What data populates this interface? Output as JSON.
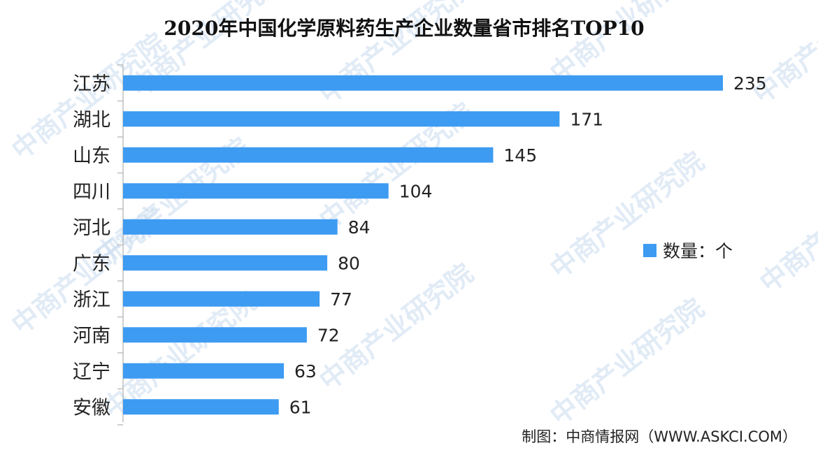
{
  "watermark_text": "中商产业研究院",
  "source_text": "制图：中商情报网（WWW.ASKCI.COM）",
  "legend": {
    "label": "数量：个"
  },
  "colors": {
    "bar": "#3d9bf2",
    "axis": "#bfbfbf"
  },
  "chart_data": {
    "type": "bar",
    "orientation": "horizontal",
    "title": "2020年中国化学原料药生产企业数量省市排名TOP10",
    "categories": [
      "江苏",
      "湖北",
      "山东",
      "四川",
      "河北",
      "广东",
      "浙江",
      "河南",
      "辽宁",
      "安徽"
    ],
    "series": [
      {
        "name": "数量：个",
        "values": [
          235,
          171,
          145,
          104,
          84,
          80,
          77,
          72,
          63,
          61
        ]
      }
    ],
    "xlim": [
      0,
      235
    ],
    "grid": false,
    "legend_position": "right",
    "data_labels": true
  }
}
